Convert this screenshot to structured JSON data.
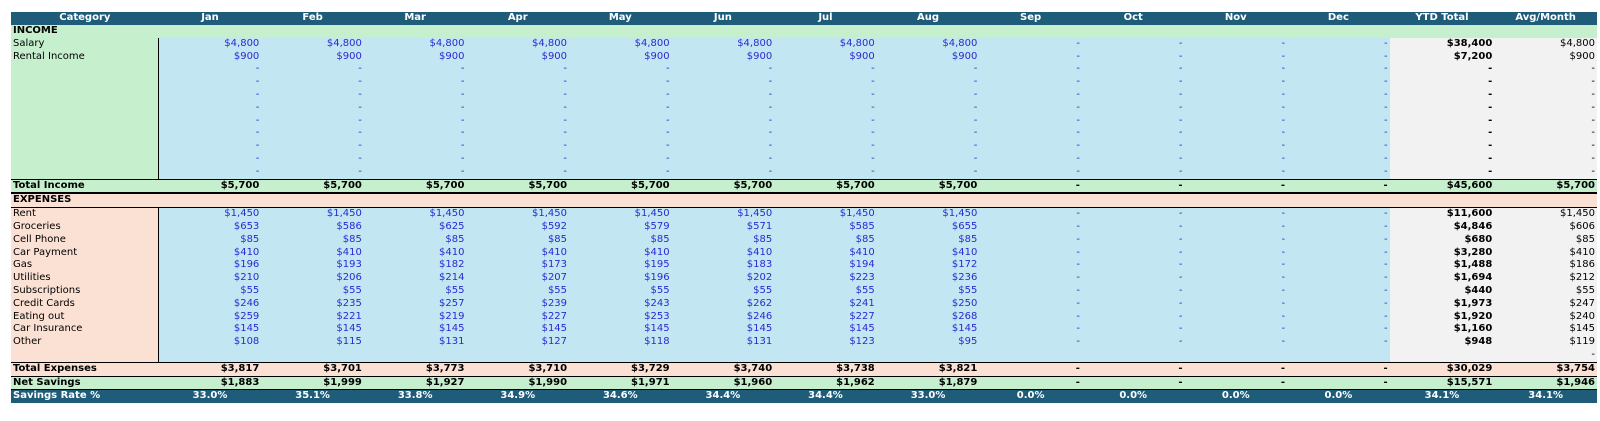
{
  "headers": [
    "Category",
    "Jan",
    "Feb",
    "Mar",
    "Apr",
    "May",
    "Jun",
    "Jul",
    "Aug",
    "Sep",
    "Oct",
    "Nov",
    "Dec",
    "YTD Total",
    "Avg/Month"
  ],
  "income_label": "INCOME",
  "income_rows": [
    {
      "label": "Salary",
      "months": [
        "$4,800",
        "$4,800",
        "$4,800",
        "$4,800",
        "$4,800",
        "$4,800",
        "$4,800",
        "$4,800",
        "-",
        "-",
        "-",
        "-"
      ],
      "ytd": "$38,400",
      "avg": "$4,800"
    },
    {
      "label": "Rental Income",
      "months": [
        "$900",
        "$900",
        "$900",
        "$900",
        "$900",
        "$900",
        "$900",
        "$900",
        "-",
        "-",
        "-",
        "-"
      ],
      "ytd": "$7,200",
      "avg": "$900"
    },
    {
      "label": "",
      "months": [
        "-",
        "-",
        "-",
        "-",
        "-",
        "-",
        "-",
        "-",
        "-",
        "-",
        "-",
        "-"
      ],
      "ytd": "-",
      "avg": "-"
    },
    {
      "label": "",
      "months": [
        "-",
        "-",
        "-",
        "-",
        "-",
        "-",
        "-",
        "-",
        "-",
        "-",
        "-",
        "-"
      ],
      "ytd": "-",
      "avg": "-"
    },
    {
      "label": "",
      "months": [
        "-",
        "-",
        "-",
        "-",
        "-",
        "-",
        "-",
        "-",
        "-",
        "-",
        "-",
        "-"
      ],
      "ytd": "-",
      "avg": "-"
    },
    {
      "label": "",
      "months": [
        "-",
        "-",
        "-",
        "-",
        "-",
        "-",
        "-",
        "-",
        "-",
        "-",
        "-",
        "-"
      ],
      "ytd": "-",
      "avg": "-"
    },
    {
      "label": "",
      "months": [
        "-",
        "-",
        "-",
        "-",
        "-",
        "-",
        "-",
        "-",
        "-",
        "-",
        "-",
        "-"
      ],
      "ytd": "-",
      "avg": "-"
    },
    {
      "label": "",
      "months": [
        "-",
        "-",
        "-",
        "-",
        "-",
        "-",
        "-",
        "-",
        "-",
        "-",
        "-",
        "-"
      ],
      "ytd": "-",
      "avg": "-"
    },
    {
      "label": "",
      "months": [
        "-",
        "-",
        "-",
        "-",
        "-",
        "-",
        "-",
        "-",
        "-",
        "-",
        "-",
        "-"
      ],
      "ytd": "-",
      "avg": "-"
    },
    {
      "label": "",
      "months": [
        "-",
        "-",
        "-",
        "-",
        "-",
        "-",
        "-",
        "-",
        "-",
        "-",
        "-",
        "-"
      ],
      "ytd": "-",
      "avg": "-"
    },
    {
      "label": "",
      "months": [
        "-",
        "-",
        "-",
        "-",
        "-",
        "-",
        "-",
        "-",
        "-",
        "-",
        "-",
        "-"
      ],
      "ytd": "-",
      "avg": "-"
    }
  ],
  "total_income": {
    "label": "Total Income",
    "months": [
      "$5,700",
      "$5,700",
      "$5,700",
      "$5,700",
      "$5,700",
      "$5,700",
      "$5,700",
      "$5,700",
      "-",
      "-",
      "-",
      "-"
    ],
    "ytd": "$45,600",
    "avg": "$5,700"
  },
  "expenses_label": "EXPENSES",
  "expense_rows": [
    {
      "label": "Rent",
      "months": [
        "$1,450",
        "$1,450",
        "$1,450",
        "$1,450",
        "$1,450",
        "$1,450",
        "$1,450",
        "$1,450",
        "-",
        "-",
        "-",
        "-"
      ],
      "ytd": "$11,600",
      "avg": "$1,450"
    },
    {
      "label": "Groceries",
      "months": [
        "$653",
        "$586",
        "$625",
        "$592",
        "$579",
        "$571",
        "$585",
        "$655",
        "-",
        "-",
        "-",
        "-"
      ],
      "ytd": "$4,846",
      "avg": "$606"
    },
    {
      "label": "Cell Phone",
      "months": [
        "$85",
        "$85",
        "$85",
        "$85",
        "$85",
        "$85",
        "$85",
        "$85",
        "-",
        "-",
        "-",
        "-"
      ],
      "ytd": "$680",
      "avg": "$85"
    },
    {
      "label": "Car Payment",
      "months": [
        "$410",
        "$410",
        "$410",
        "$410",
        "$410",
        "$410",
        "$410",
        "$410",
        "-",
        "-",
        "-",
        "-"
      ],
      "ytd": "$3,280",
      "avg": "$410"
    },
    {
      "label": "Gas",
      "months": [
        "$196",
        "$193",
        "$182",
        "$173",
        "$195",
        "$183",
        "$194",
        "$172",
        "-",
        "-",
        "-",
        "-"
      ],
      "ytd": "$1,488",
      "avg": "$186"
    },
    {
      "label": "Utilities",
      "months": [
        "$210",
        "$206",
        "$214",
        "$207",
        "$196",
        "$202",
        "$223",
        "$236",
        "-",
        "-",
        "-",
        "-"
      ],
      "ytd": "$1,694",
      "avg": "$212"
    },
    {
      "label": "Subscriptions",
      "months": [
        "$55",
        "$55",
        "$55",
        "$55",
        "$55",
        "$55",
        "$55",
        "$55",
        "-",
        "-",
        "-",
        "-"
      ],
      "ytd": "$440",
      "avg": "$55"
    },
    {
      "label": "Credit Cards",
      "months": [
        "$246",
        "$235",
        "$257",
        "$239",
        "$243",
        "$262",
        "$241",
        "$250",
        "-",
        "-",
        "-",
        "-"
      ],
      "ytd": "$1,973",
      "avg": "$247"
    },
    {
      "label": "Eating out",
      "months": [
        "$259",
        "$221",
        "$219",
        "$227",
        "$253",
        "$246",
        "$227",
        "$268",
        "-",
        "-",
        "-",
        "-"
      ],
      "ytd": "$1,920",
      "avg": "$240"
    },
    {
      "label": "Car Insurance",
      "months": [
        "$145",
        "$145",
        "$145",
        "$145",
        "$145",
        "$145",
        "$145",
        "$145",
        "-",
        "-",
        "-",
        "-"
      ],
      "ytd": "$1,160",
      "avg": "$145"
    },
    {
      "label": "Other",
      "months": [
        "$108",
        "$115",
        "$131",
        "$127",
        "$118",
        "$131",
        "$123",
        "$95",
        "-",
        "-",
        "-",
        "-"
      ],
      "ytd": "$948",
      "avg": "$119"
    },
    {
      "label": "",
      "months": [
        "",
        "",
        "",
        "",
        "",
        "",
        "",
        "",
        "",
        "",
        "",
        ""
      ],
      "ytd": "",
      "avg": "-"
    }
  ],
  "total_expenses": {
    "label": "Total Expenses",
    "months": [
      "$3,817",
      "$3,701",
      "$3,773",
      "$3,710",
      "$3,729",
      "$3,740",
      "$3,738",
      "$3,821",
      "-",
      "-",
      "-",
      "-"
    ],
    "ytd": "$30,029",
    "avg": "$3,754"
  },
  "net_savings": {
    "label": "Net Savings",
    "months": [
      "$1,883",
      "$1,999",
      "$1,927",
      "$1,990",
      "$1,971",
      "$1,960",
      "$1,962",
      "$1,879",
      "-",
      "-",
      "-",
      "-"
    ],
    "ytd": "$15,571",
    "avg": "$1,946"
  },
  "savings_rate": {
    "label": "Savings Rate %",
    "months": [
      "33.0%",
      "35.1%",
      "33.8%",
      "34.9%",
      "34.6%",
      "34.4%",
      "34.4%",
      "33.0%",
      "0.0%",
      "0.0%",
      "0.0%",
      "0.0%"
    ],
    "ytd": "34.1%",
    "avg": "34.1%"
  }
}
